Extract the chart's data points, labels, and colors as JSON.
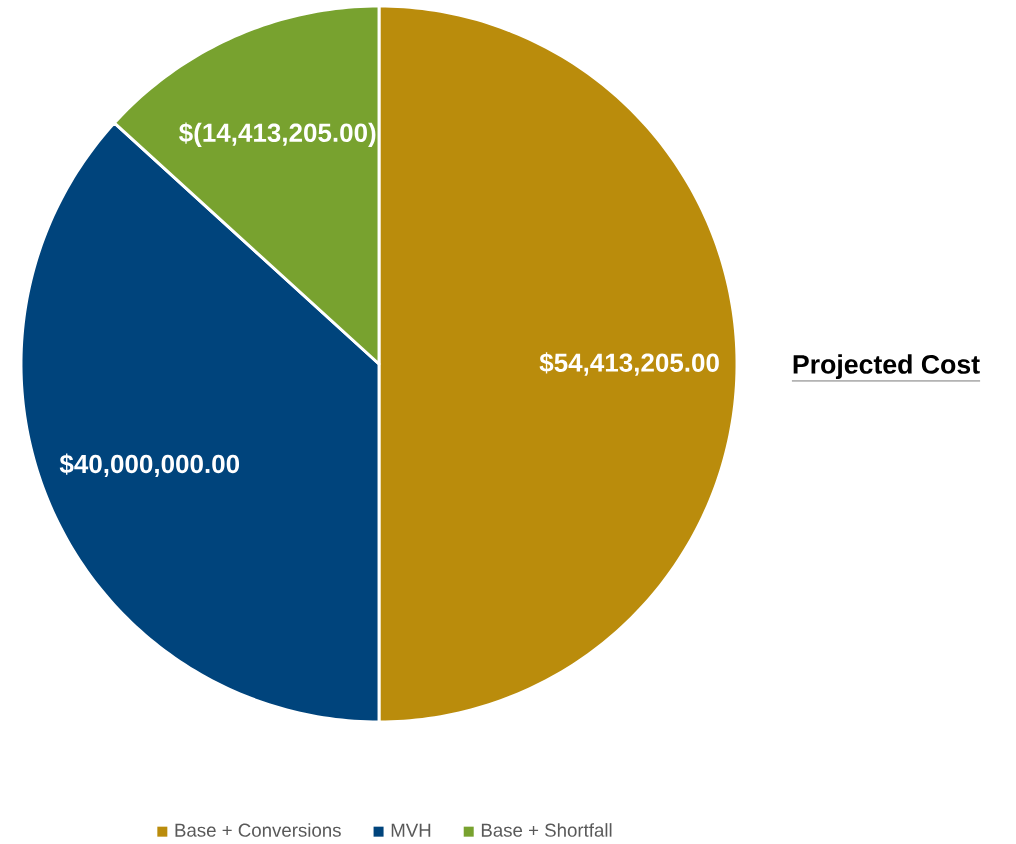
{
  "chart_data": {
    "type": "pie",
    "title": "Projected Cost",
    "categories": [
      "Base + Conversions",
      "MVH",
      "Base + Shortfall"
    ],
    "values": [
      54413205,
      40000000,
      14413205
    ],
    "value_labels": [
      "$54,413,205.00",
      "$40,000,000.00",
      "$(14,413,205.00)"
    ],
    "colors": [
      "#ba8c0c",
      "#00447c",
      "#78a22f"
    ],
    "legend": "bottom"
  }
}
